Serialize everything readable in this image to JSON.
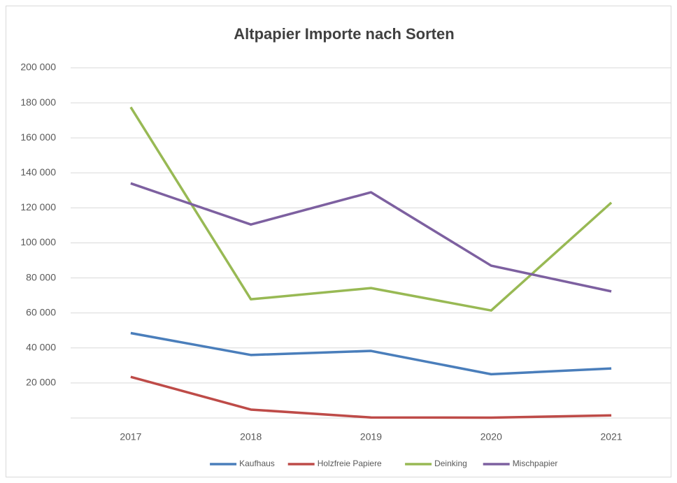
{
  "chart_data": {
    "type": "line",
    "title": "Altpapier Importe nach Sorten",
    "categories": [
      "2017",
      "2018",
      "2019",
      "2020",
      "2021"
    ],
    "series": [
      {
        "name": "Kaufhaus",
        "color": "#4a7ebb",
        "values": [
          48500,
          36000,
          38300,
          25000,
          28300
        ]
      },
      {
        "name": "Holzfreie Papiere",
        "color": "#be4b48",
        "values": [
          23500,
          4800,
          300,
          200,
          1500
        ]
      },
      {
        "name": "Deinking",
        "color": "#98b954",
        "values": [
          177500,
          67800,
          74200,
          61400,
          123000
        ]
      },
      {
        "name": "Mischpapier",
        "color": "#7d60a0",
        "values": [
          134000,
          110500,
          128900,
          87000,
          72300
        ]
      }
    ],
    "ylim": [
      0,
      200000
    ],
    "yticks": [
      {
        "value": 20000,
        "label": "20 000"
      },
      {
        "value": 40000,
        "label": "40 000"
      },
      {
        "value": 60000,
        "label": "60 000"
      },
      {
        "value": 80000,
        "label": "80 000"
      },
      {
        "value": 100000,
        "label": "100 000"
      },
      {
        "value": 120000,
        "label": "120 000"
      },
      {
        "value": 140000,
        "label": "140 000"
      },
      {
        "value": 160000,
        "label": "160 000"
      },
      {
        "value": 180000,
        "label": "180 000"
      },
      {
        "value": 200000,
        "label": "200 000"
      }
    ],
    "grid": true,
    "legend": "bottom"
  }
}
